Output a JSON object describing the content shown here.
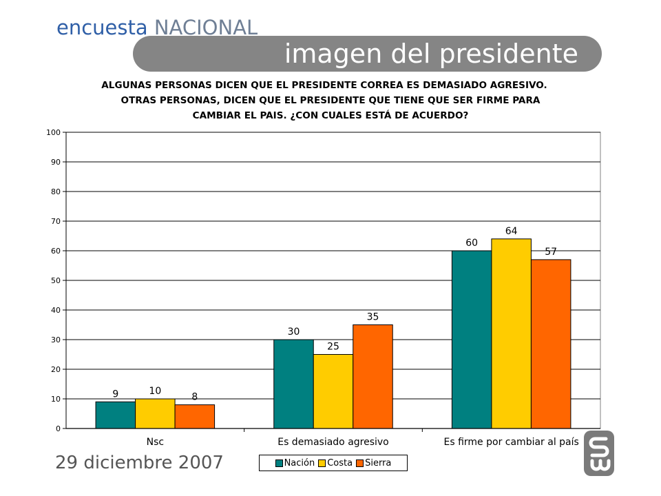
{
  "header": {
    "brand_lower": "encuesta",
    "brand_upper": "NACIONAL",
    "title": "imagen del presidente"
  },
  "question": {
    "line1": "ALGUNAS PERSONAS DICEN QUE EL PRESIDENTE CORREA ES DEMASIADO AGRESIVO.",
    "line2": "OTRAS PERSONAS, DICEN QUE EL PRESIDENTE QUE TIENE QUE SER FIRME PARA",
    "line3": "CAMBIAR EL PAIS. ¿CON CUALES ESTÁ DE ACUERDO?"
  },
  "footer": {
    "date": "29 diciembre 2007"
  },
  "colors": {
    "nacion": "#008080",
    "costa": "#ffcc00",
    "sierra": "#ff6600",
    "banner": "#858585",
    "gridline": "#000000"
  },
  "logo": {
    "icon": "company-logo-icon"
  },
  "chart_data": {
    "type": "bar",
    "title": "",
    "xlabel": "",
    "ylabel": "",
    "categories": [
      "Nsc",
      "Es demasiado agresivo",
      "Es firme por cambiar al país"
    ],
    "series": [
      {
        "name": "Nación",
        "values": [
          9,
          30,
          60
        ],
        "color": "#008080"
      },
      {
        "name": "Costa",
        "values": [
          10,
          25,
          64
        ],
        "color": "#ffcc00"
      },
      {
        "name": "Sierra",
        "values": [
          8,
          35,
          57
        ],
        "color": "#ff6600"
      }
    ],
    "ylim": [
      0,
      100
    ],
    "yticks": [
      0,
      10,
      20,
      30,
      40,
      50,
      60,
      70,
      80,
      90,
      100
    ],
    "grid": true,
    "legend": "bottom"
  }
}
